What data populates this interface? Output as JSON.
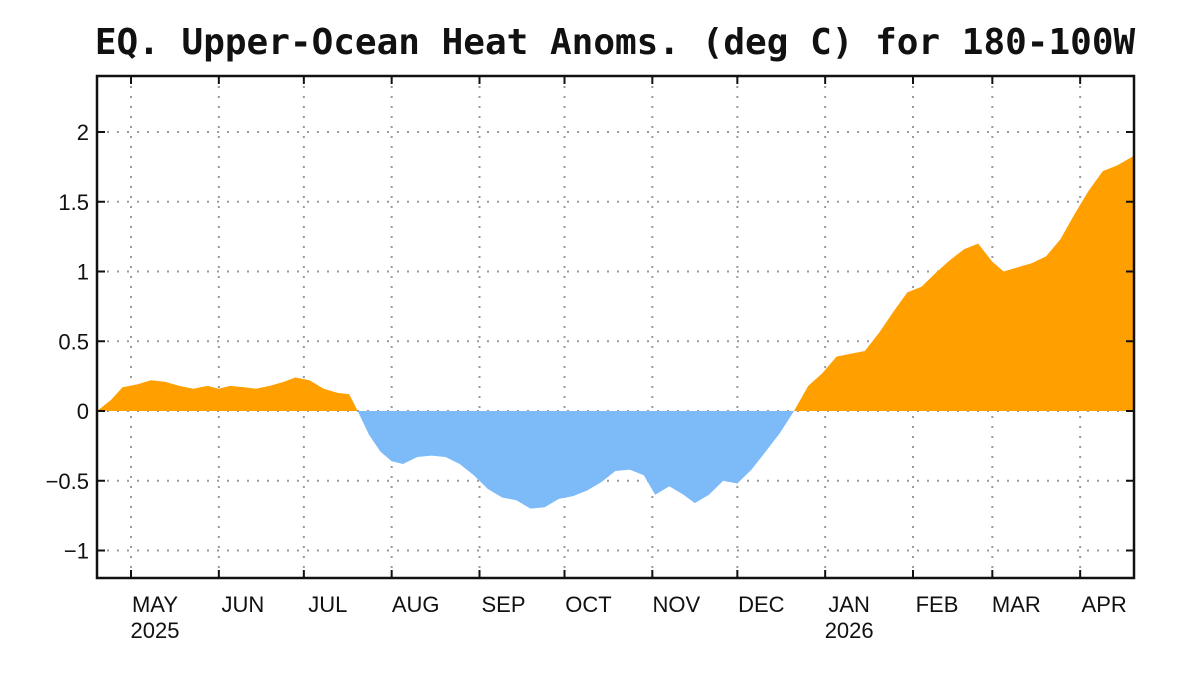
{
  "chart_data": {
    "type": "area",
    "title": "EQ. Upper-Ocean Heat Anoms. (deg C) for 180-100W",
    "xlabel": "",
    "ylabel": "",
    "ylim": [
      -1.2,
      2.0
    ],
    "yticks": [
      {
        "value": 2,
        "label": "2"
      },
      {
        "value": 1.5,
        "label": "1.5"
      },
      {
        "value": 1,
        "label": "1"
      },
      {
        "value": 0.5,
        "label": "0.5"
      },
      {
        "value": 0,
        "label": "0"
      },
      {
        "value": -0.5,
        "label": "-0.5"
      },
      {
        "value": -1,
        "label": "-1"
      }
    ],
    "xlim": [
      "2025-04-19",
      "2026-04-20"
    ],
    "xticks": [
      {
        "date": "2025-05-01",
        "label": "MAY",
        "year": "2025"
      },
      {
        "date": "2025-06-01",
        "label": "JUN",
        "year": ""
      },
      {
        "date": "2025-07-01",
        "label": "JUL",
        "year": ""
      },
      {
        "date": "2025-08-01",
        "label": "AUG",
        "year": ""
      },
      {
        "date": "2025-09-01",
        "label": "SEP",
        "year": ""
      },
      {
        "date": "2025-10-01",
        "label": "OCT",
        "year": ""
      },
      {
        "date": "2025-11-01",
        "label": "NOV",
        "year": ""
      },
      {
        "date": "2025-12-01",
        "label": "DEC",
        "year": ""
      },
      {
        "date": "2026-01-01",
        "label": "JAN",
        "year": "2026"
      },
      {
        "date": "2026-02-01",
        "label": "FEB",
        "year": ""
      },
      {
        "date": "2026-03-01",
        "label": "MAR",
        "year": ""
      },
      {
        "date": "2026-04-01",
        "label": "APR",
        "year": ""
      }
    ],
    "grid": true,
    "positive_color": "#ffa000",
    "negative_color": "#7cbbf8",
    "series": [
      {
        "points": [
          [
            "2025-04-19",
            0.0
          ],
          [
            "2025-04-24",
            0.08
          ],
          [
            "2025-04-28",
            0.17
          ],
          [
            "2025-05-03",
            0.19
          ],
          [
            "2025-05-08",
            0.22
          ],
          [
            "2025-05-13",
            0.21
          ],
          [
            "2025-05-18",
            0.18
          ],
          [
            "2025-05-23",
            0.16
          ],
          [
            "2025-05-28",
            0.18
          ],
          [
            "2025-06-01",
            0.16
          ],
          [
            "2025-06-05",
            0.18
          ],
          [
            "2025-06-10",
            0.17
          ],
          [
            "2025-06-14",
            0.16
          ],
          [
            "2025-06-19",
            0.18
          ],
          [
            "2025-06-24",
            0.21
          ],
          [
            "2025-06-28",
            0.24
          ],
          [
            "2025-07-03",
            0.22
          ],
          [
            "2025-07-08",
            0.16
          ],
          [
            "2025-07-13",
            0.13
          ],
          [
            "2025-07-17",
            0.12
          ],
          [
            "2025-07-20",
            0.0
          ],
          [
            "2025-07-24",
            -0.17
          ],
          [
            "2025-07-28",
            -0.29
          ],
          [
            "2025-08-01",
            -0.36
          ],
          [
            "2025-08-05",
            -0.38
          ],
          [
            "2025-08-10",
            -0.33
          ],
          [
            "2025-08-15",
            -0.32
          ],
          [
            "2025-08-20",
            -0.33
          ],
          [
            "2025-08-25",
            -0.38
          ],
          [
            "2025-08-30",
            -0.46
          ],
          [
            "2025-09-04",
            -0.56
          ],
          [
            "2025-09-09",
            -0.62
          ],
          [
            "2025-09-14",
            -0.64
          ],
          [
            "2025-09-19",
            -0.7
          ],
          [
            "2025-09-24",
            -0.69
          ],
          [
            "2025-09-29",
            -0.63
          ],
          [
            "2025-10-04",
            -0.61
          ],
          [
            "2025-10-09",
            -0.57
          ],
          [
            "2025-10-14",
            -0.51
          ],
          [
            "2025-10-19",
            -0.43
          ],
          [
            "2025-10-24",
            -0.42
          ],
          [
            "2025-10-29",
            -0.46
          ],
          [
            "2025-11-02",
            -0.6
          ],
          [
            "2025-11-07",
            -0.54
          ],
          [
            "2025-11-12",
            -0.6
          ],
          [
            "2025-11-16",
            -0.66
          ],
          [
            "2025-11-21",
            -0.6
          ],
          [
            "2025-11-26",
            -0.5
          ],
          [
            "2025-12-01",
            -0.52
          ],
          [
            "2025-12-06",
            -0.42
          ],
          [
            "2025-12-11",
            -0.29
          ],
          [
            "2025-12-16",
            -0.16
          ],
          [
            "2025-12-21",
            0.0
          ],
          [
            "2025-12-26",
            0.18
          ],
          [
            "2025-12-31",
            0.27
          ],
          [
            "2026-01-05",
            0.39
          ],
          [
            "2026-01-10",
            0.41
          ],
          [
            "2026-01-15",
            0.43
          ],
          [
            "2026-01-20",
            0.56
          ],
          [
            "2026-01-25",
            0.71
          ],
          [
            "2026-01-30",
            0.85
          ],
          [
            "2026-02-04",
            0.89
          ],
          [
            "2026-02-09",
            0.99
          ],
          [
            "2026-02-14",
            1.08
          ],
          [
            "2026-02-19",
            1.16
          ],
          [
            "2026-02-24",
            1.2
          ],
          [
            "2026-03-01",
            1.07
          ],
          [
            "2026-03-05",
            1.0
          ],
          [
            "2026-03-10",
            1.03
          ],
          [
            "2026-03-15",
            1.06
          ],
          [
            "2026-03-20",
            1.11
          ],
          [
            "2026-03-25",
            1.23
          ],
          [
            "2026-03-30",
            1.41
          ],
          [
            "2026-04-04",
            1.58
          ],
          [
            "2026-04-09",
            1.72
          ],
          [
            "2026-04-14",
            1.76
          ],
          [
            "2026-04-20",
            1.83
          ]
        ]
      }
    ]
  }
}
